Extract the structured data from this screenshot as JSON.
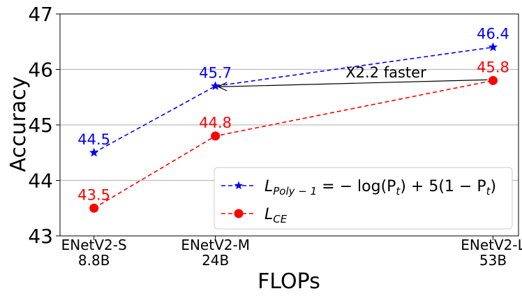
{
  "chart_data": {
    "type": "line",
    "x_ticks": [
      {
        "x": 1.0,
        "label_line1": "ENetV2-S",
        "label_line2": "8.8B"
      },
      {
        "x": 2.43,
        "label_line1": "ENetV2-M",
        "label_line2": "24B"
      },
      {
        "x": 5.7,
        "label_line1": "ENetV2-L",
        "label_line2": "53B"
      }
    ],
    "xlabel": "FLOPs",
    "ylabel": "Accuracy",
    "ylim": [
      43,
      47
    ],
    "yticks": [
      43,
      44,
      45,
      46,
      47
    ],
    "grid": "horizontal",
    "series": [
      {
        "key": "poly",
        "legend_parts": {
          "main": "L",
          "sub": "Poly − 1",
          "rest": " = − log(P",
          "sub2": "t",
          "rest2": ") + 5(1 − P",
          "sub3": "t",
          "rest3": ")"
        },
        "color": "#0000ff",
        "marker": "star",
        "linestyle": "dashed",
        "points": [
          {
            "x": 1.0,
            "y": 44.5,
            "label": "44.5"
          },
          {
            "x": 2.43,
            "y": 45.7,
            "label": "45.7"
          },
          {
            "x": 5.7,
            "y": 46.4,
            "label": "46.4"
          }
        ]
      },
      {
        "key": "ce",
        "legend_parts": {
          "main": "L",
          "sub": "CE"
        },
        "color": "#ff0000",
        "marker": "circle",
        "linestyle": "dashed",
        "points": [
          {
            "x": 1.0,
            "y": 43.5,
            "label": "43.5"
          },
          {
            "x": 2.43,
            "y": 44.8,
            "label": "44.8"
          },
          {
            "x": 5.7,
            "y": 45.8,
            "label": "45.8"
          }
        ]
      }
    ],
    "annotation": {
      "text": "X2.2 faster",
      "from": {
        "x": 5.7,
        "y": 45.8
      },
      "to": {
        "x": 2.43,
        "y": 45.7
      }
    },
    "legend_position": "lower-right"
  }
}
